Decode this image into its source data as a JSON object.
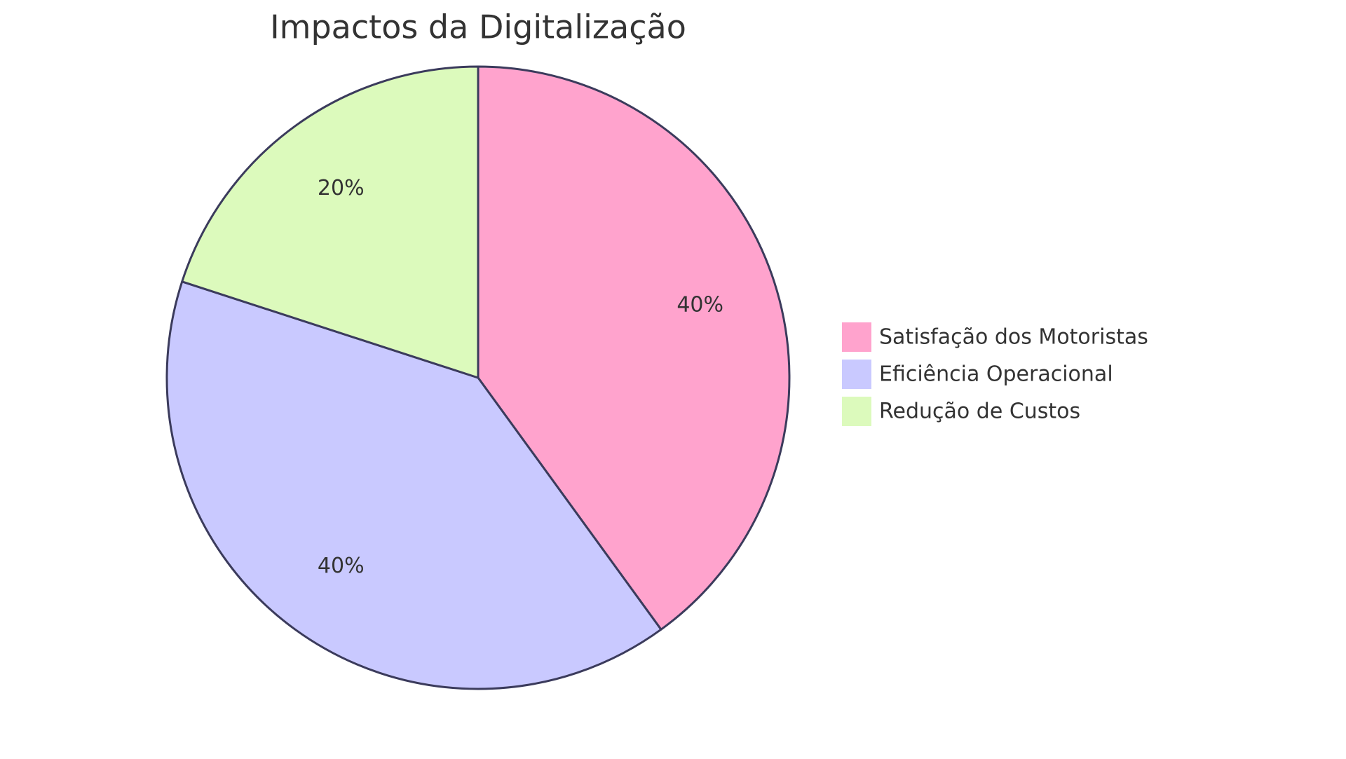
{
  "chart_data": {
    "type": "pie",
    "title": "Impactos da Digitalização",
    "categories": [
      "Satisfação dos Motoristas",
      "Eficiência Operacional",
      "Redução de Custos"
    ],
    "values": [
      40,
      40,
      20
    ],
    "value_labels": [
      "40%",
      "40%",
      "20%"
    ],
    "colors": [
      "#ffa3cd",
      "#c9c9ff",
      "#dcfabc"
    ]
  }
}
